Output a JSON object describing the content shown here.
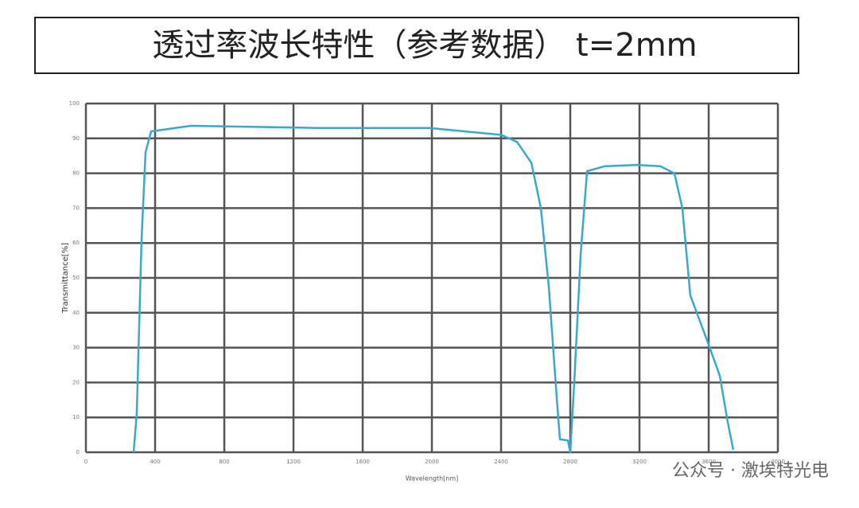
{
  "chart_data": {
    "type": "line",
    "title": "透过率波长特性（参考数据）   t=2mm",
    "x_label": "Wavelength[nm]",
    "y_label": "Transmittance[%]",
    "xlim": [
      0,
      4000
    ],
    "xticks": [
      0,
      400,
      800,
      1200,
      1600,
      2000,
      2400,
      2800,
      3200,
      3600,
      4000
    ],
    "ylim": [
      0,
      100
    ],
    "yticks": [
      0,
      10,
      20,
      30,
      40,
      50,
      60,
      70,
      80,
      90,
      100
    ],
    "grid": true,
    "series": [
      {
        "name": "t=2mm",
        "color": "#3aa9c9",
        "x": [
          276,
          294,
          322,
          345,
          377,
          607,
          1343,
          1986,
          2400,
          2492,
          2575,
          2630,
          2676,
          2722,
          2740,
          2786,
          2800,
          2823,
          2860,
          2897,
          2998,
          3182,
          3320,
          3402,
          3448,
          3494,
          3595,
          3664,
          3710,
          3742
        ],
        "values": [
          0,
          11,
          61,
          86,
          92,
          93.6,
          93,
          93,
          91,
          89,
          83,
          70,
          47.5,
          15.5,
          3.7,
          3.4,
          0,
          20,
          56.6,
          80.6,
          82,
          82.4,
          82,
          80,
          70,
          45,
          31.5,
          22,
          8.7,
          0.7
        ]
      }
    ],
    "watermark": "公众号 · 激埃特光电"
  }
}
